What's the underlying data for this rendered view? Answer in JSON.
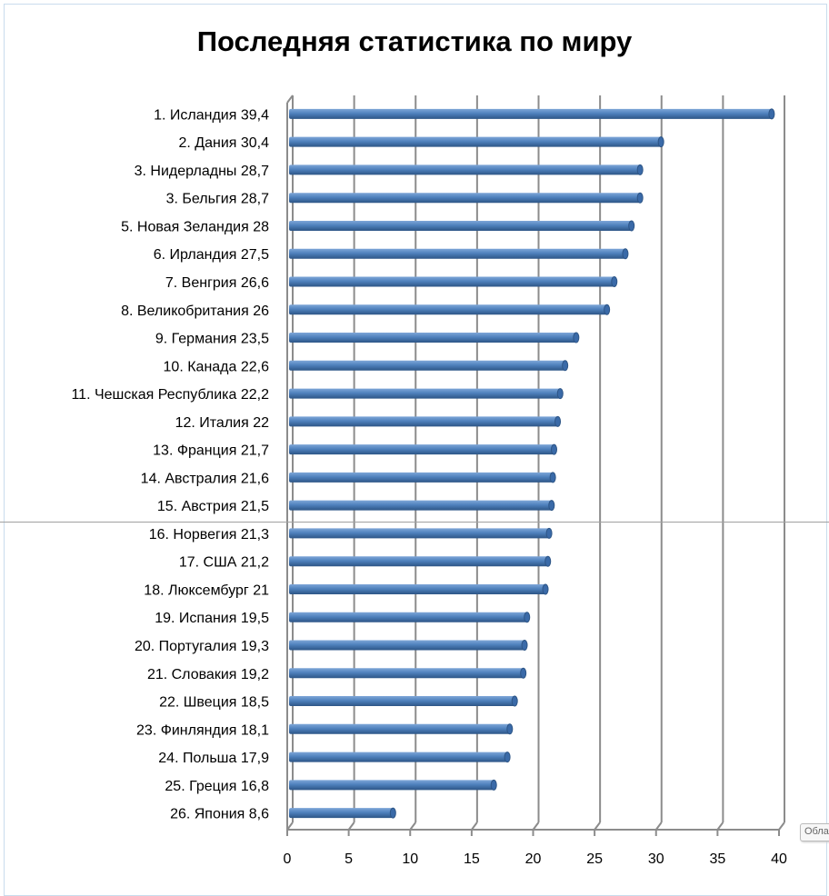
{
  "chart_data": {
    "type": "bar",
    "orientation": "horizontal",
    "title": "Последняя статистика по миру",
    "categories": [
      "1. Исландия   39,4",
      "2. Дания   30,4",
      "3. Нидерладны   28,7",
      "3. Бельгия   28,7",
      "5. Новая Зеландия   28",
      "6. Ирландия   27,5",
      "7. Венгрия   26,6",
      "8. Великобритания   26",
      "9. Германия   23,5",
      "10. Канада   22,6",
      "11. Чешская Республика   22,2",
      "12. Италия   22",
      "13. Франция   21,7",
      "14. Австралия   21,6",
      "15. Австрия   21,5",
      "16. Норвегия   21,3",
      "17. США   21,2",
      "18. Люксембург   21",
      "19. Испания   19,5",
      "20. Португалия   19,3",
      "21. Словакия   19,2",
      "22. Швеция   18,5",
      "23. Финляндия   18,1",
      "24. Польша   17,9",
      "25. Греция   16,8",
      "26. Япония   8,6"
    ],
    "values": [
      39.4,
      30.4,
      28.7,
      28.7,
      28,
      27.5,
      26.6,
      26,
      23.5,
      22.6,
      22.2,
      22,
      21.7,
      21.6,
      21.5,
      21.3,
      21.2,
      21,
      19.5,
      19.3,
      19.2,
      18.5,
      18.1,
      17.9,
      16.8,
      8.6
    ],
    "xlim": [
      0,
      40
    ],
    "xticks": [
      "0",
      "5",
      "10",
      "15",
      "20",
      "25",
      "30",
      "35",
      "40"
    ],
    "xlabel": "",
    "ylabel": "",
    "grid": true,
    "bar_color": "#4f81bd"
  },
  "tooltip": "Обла"
}
